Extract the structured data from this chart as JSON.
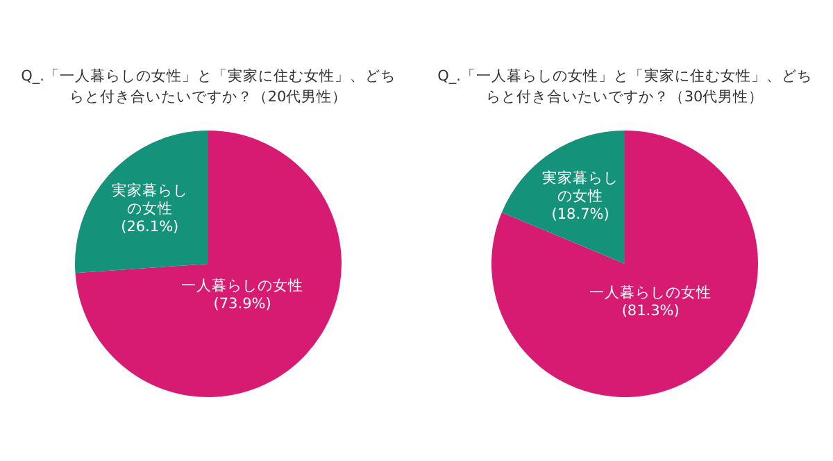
{
  "chart_data": [
    {
      "type": "pie",
      "title": "Q_.「一人暮らしの女性」と「実家に住む女性」、どちらと付き合いたいですか？（20代男性）",
      "categories": [
        "一人暮らしの女性",
        "実家暮らしの女性"
      ],
      "values": [
        73.9,
        26.1
      ],
      "colors": [
        "#d81b72",
        "#14927a"
      ],
      "value_labels": [
        "(73.9%)",
        "(26.1%)"
      ]
    },
    {
      "type": "pie",
      "title": "Q_.「一人暮らしの女性」と「実家に住む女性」、どちらと付き合いたいですか？（30代男性）",
      "categories": [
        "一人暮らしの女性",
        "実家暮らしの女性"
      ],
      "values": [
        81.3,
        18.7
      ],
      "colors": [
        "#d81b72",
        "#14927a"
      ],
      "value_labels": [
        "(81.3%)",
        "(18.7%)"
      ]
    }
  ]
}
